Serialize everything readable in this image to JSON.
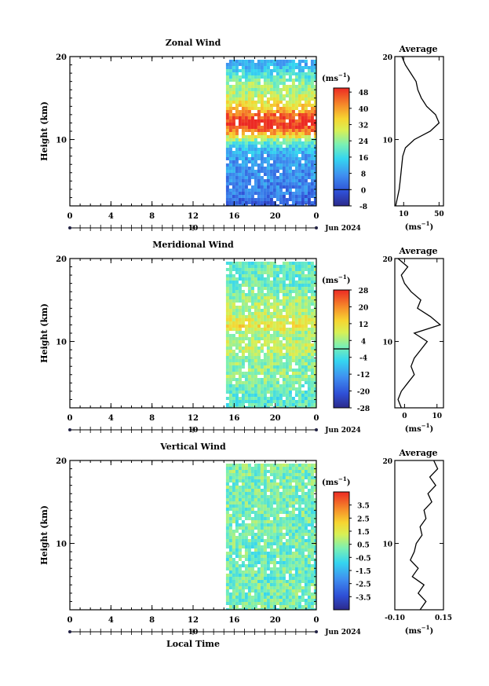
{
  "chart_data": [
    {
      "type": "heatmap",
      "title": "Zonal Wind",
      "ylabel": "Height (km)",
      "x_ticks": [
        "0",
        "4",
        "8",
        "12",
        "16",
        "20",
        "0"
      ],
      "y_ticks": [
        "10",
        "20"
      ],
      "xlim": [
        0,
        24
      ],
      "ylim": [
        2,
        20
      ],
      "data_start_hour": 15.2,
      "date_label": "10",
      "date_caption": "Jun 2024",
      "unit_base": "(ms",
      "unit_exp": "−1",
      "unit_close": ")",
      "colorbar": {
        "min": -8,
        "max": 50,
        "ticks": [
          "-8",
          "0",
          "8",
          "16",
          "24",
          "32",
          "40",
          "48"
        ],
        "zero_line": 0
      },
      "profile": {
        "title": "Average",
        "x_ticks": [
          "10",
          "50"
        ],
        "xlim": [
          0,
          55
        ],
        "y_ticks": [
          "10",
          "20"
        ],
        "xlabel_base": "(ms",
        "xlabel_exp": "−1",
        "xlabel_close": ")",
        "heights": [
          2,
          3,
          4,
          5,
          6,
          7,
          8,
          9,
          10,
          11,
          12,
          13,
          14,
          15,
          16,
          17,
          18,
          19,
          20
        ],
        "values": [
          1,
          3,
          5,
          6,
          7,
          8,
          9,
          12,
          22,
          40,
          50,
          46,
          36,
          30,
          26,
          24,
          18,
          12,
          8
        ]
      }
    },
    {
      "type": "heatmap",
      "title": "Meridional Wind",
      "ylabel": "Height (km)",
      "x_ticks": [
        "0",
        "4",
        "8",
        "12",
        "16",
        "20",
        "0"
      ],
      "y_ticks": [
        "10",
        "20"
      ],
      "xlim": [
        0,
        24
      ],
      "ylim": [
        2,
        20
      ],
      "data_start_hour": 15.2,
      "date_label": "10",
      "date_caption": "Jun 2024",
      "unit_base": "(ms",
      "unit_exp": "−1",
      "unit_close": ")",
      "colorbar": {
        "min": -28,
        "max": 28,
        "ticks": [
          "-28",
          "-20",
          "-12",
          "-4",
          "4",
          "12",
          "20",
          "28"
        ],
        "zero_line": 0
      },
      "profile": {
        "title": "Average",
        "x_ticks": [
          "0",
          "10"
        ],
        "xlim": [
          -3,
          12
        ],
        "y_ticks": [
          "10",
          "20"
        ],
        "xlabel_base": "(ms",
        "xlabel_exp": "−1",
        "xlabel_close": ")",
        "heights": [
          2,
          3,
          4,
          5,
          6,
          7,
          8,
          9,
          10,
          11,
          12,
          13,
          14,
          15,
          16,
          17,
          18,
          19,
          20
        ],
        "values": [
          -1,
          -2,
          -1,
          1,
          3,
          2,
          3,
          5,
          7,
          3,
          11,
          8,
          4,
          5,
          2,
          0,
          -1,
          1,
          -2
        ]
      }
    },
    {
      "type": "heatmap",
      "title": "Vertical Wind",
      "ylabel": "Height (km)",
      "xlabel": "Local Time",
      "x_ticks": [
        "0",
        "4",
        "8",
        "12",
        "16",
        "20",
        "0"
      ],
      "y_ticks": [
        "10",
        "20"
      ],
      "xlim": [
        0,
        24
      ],
      "ylim": [
        2,
        20
      ],
      "data_start_hour": 15.2,
      "date_label": "10",
      "date_caption": "Jun 2024",
      "unit_base": "(ms",
      "unit_exp": "−1",
      "unit_close": ")",
      "colorbar": {
        "min": -4.5,
        "max": 4.5,
        "ticks": [
          "-3.5",
          "-2.5",
          "-1.5",
          "-0.5",
          "0.5",
          "1.5",
          "2.5",
          "3.5"
        ]
      },
      "profile": {
        "title": "Average",
        "x_ticks": [
          "-0.10",
          "0.15"
        ],
        "xlim": [
          -0.1,
          0.15
        ],
        "y_ticks": [
          "10",
          "20"
        ],
        "xlabel_base": "(ms",
        "xlabel_exp": "−1",
        "xlabel_close": ")",
        "heights": [
          2,
          3,
          4,
          5,
          6,
          7,
          8,
          9,
          10,
          11,
          12,
          13,
          14,
          15,
          16,
          17,
          18,
          19,
          20
        ],
        "values": [
          0.03,
          0.06,
          0.02,
          0.05,
          -0.01,
          0.02,
          -0.02,
          0.0,
          0.01,
          0.04,
          0.03,
          0.06,
          0.05,
          0.09,
          0.07,
          0.11,
          0.08,
          0.12,
          0.1
        ]
      }
    }
  ]
}
